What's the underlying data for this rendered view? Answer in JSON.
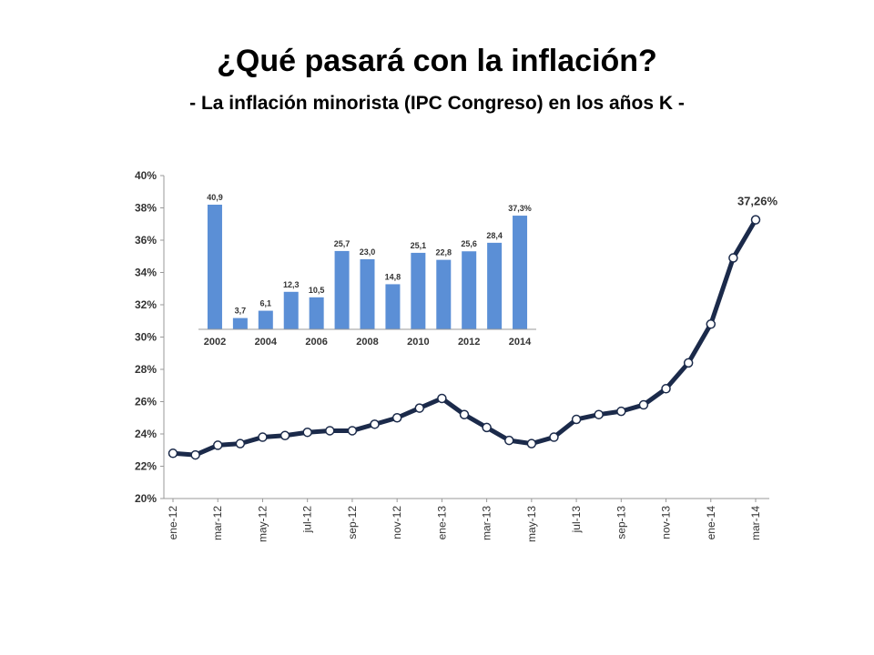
{
  "slide": {
    "title": "¿Qué pasará con la inflación?",
    "subtitle": "- La inflación minorista (IPC Congreso) en los años K -"
  },
  "colors": {
    "line": "#1b2a4a",
    "bar": "#5b8fd6",
    "text": "#333333",
    "axis": "#999999"
  },
  "chart_data": [
    {
      "type": "line",
      "title": "",
      "xlabel": "",
      "ylabel": "",
      "ylim": [
        20,
        40
      ],
      "y_ticks": [
        "20%",
        "22%",
        "24%",
        "26%",
        "28%",
        "30%",
        "32%",
        "34%",
        "36%",
        "38%",
        "40%"
      ],
      "x_tick_labels": [
        "ene-12",
        "mar-12",
        "may-12",
        "jul-12",
        "sep-12",
        "nov-12",
        "ene-13",
        "mar-13",
        "may-13",
        "jul-13",
        "sep-13",
        "nov-13",
        "ene-14",
        "mar-14"
      ],
      "x": [
        "ene-12",
        "feb-12",
        "mar-12",
        "abr-12",
        "may-12",
        "jun-12",
        "jul-12",
        "ago-12",
        "sep-12",
        "oct-12",
        "nov-12",
        "dic-12",
        "ene-13",
        "feb-13",
        "mar-13",
        "abr-13",
        "may-13",
        "jun-13",
        "jul-13",
        "ago-13",
        "sep-13",
        "oct-13",
        "nov-13",
        "dic-13",
        "ene-14",
        "feb-14",
        "mar-14"
      ],
      "values": [
        22.8,
        22.7,
        23.3,
        23.4,
        23.8,
        23.9,
        24.1,
        24.2,
        24.2,
        24.6,
        25.0,
        25.6,
        26.2,
        25.2,
        24.4,
        23.6,
        23.4,
        23.8,
        24.9,
        25.2,
        25.4,
        25.8,
        26.8,
        28.4,
        30.8,
        34.9,
        37.26
      ],
      "point_label": "37,26%",
      "grid": false,
      "legend": "none"
    },
    {
      "type": "bar",
      "title": "",
      "categories": [
        "2002",
        "2003",
        "2004",
        "2005",
        "2006",
        "2007",
        "2008",
        "2009",
        "2010",
        "2011",
        "2012",
        "2013",
        "2014"
      ],
      "tick_labels": [
        "2002",
        "2004",
        "2006",
        "2008",
        "2010",
        "2012",
        "2014"
      ],
      "values": [
        40.9,
        3.7,
        6.1,
        12.3,
        10.5,
        25.7,
        23.0,
        14.8,
        25.1,
        22.8,
        25.6,
        28.4,
        37.3
      ],
      "data_labels": [
        "40,9",
        "3,7",
        "6,1",
        "12,3",
        "10,5",
        "25,7",
        "23,0",
        "14,8",
        "25,1",
        "22,8",
        "25,6",
        "28,4",
        "37,3%"
      ],
      "ylim": [
        0,
        45
      ],
      "grid": false,
      "legend": "none"
    }
  ]
}
